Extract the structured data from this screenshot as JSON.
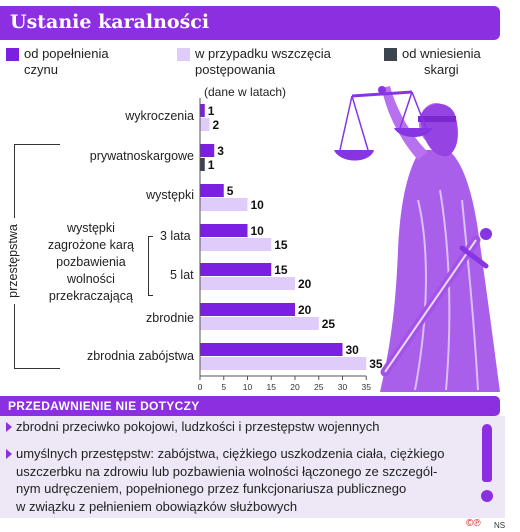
{
  "header": {
    "title": "Ustanie karalności"
  },
  "legend": [
    {
      "label_lines": [
        "od popełnienia",
        "czynu"
      ],
      "color": "#7b1fe0"
    },
    {
      "label_lines": [
        "w przypadku wszczęcia",
        "postępowania"
      ],
      "color": "#e0ccfa"
    },
    {
      "label_lines": [
        "od wniesienia",
        "skargi"
      ],
      "color": "#3c4450"
    }
  ],
  "unit_note": "(dane w latach)",
  "side_label": "przestępstwa",
  "chart_data": {
    "type": "bar",
    "orientation": "horizontal",
    "categories": [
      "wykroczenia",
      "prywatnoskargowe",
      "występki",
      "występki zagrożone karą pozbawienia wolności przekraczającą 3 lata",
      "występki zagrożone karą pozbawienia wolności przekraczającą 5 lat",
      "zbrodnie",
      "zbrodnia zabójstwa"
    ],
    "category_display": [
      {
        "lines": [
          "wykroczenia"
        ]
      },
      {
        "lines": [
          "prywatnoskargowe"
        ]
      },
      {
        "lines": [
          "występki"
        ]
      },
      {
        "lines": [
          "występki",
          "zagrożone karą",
          "pozbawienia"
        ],
        "sub": "3 lata"
      },
      {
        "lines": [
          "wolności",
          "przekraczającą"
        ],
        "sub": "5 lat"
      },
      {
        "lines": [
          "zbrodnie"
        ]
      },
      {
        "lines": [
          "zbrodnia zabójstwa"
        ]
      }
    ],
    "series": [
      {
        "name": "od popełnienia czynu",
        "values": [
          1,
          3,
          5,
          10,
          15,
          20,
          30
        ]
      },
      {
        "name": "w przypadku wszczęcia postępowania",
        "values": [
          2,
          null,
          10,
          15,
          20,
          25,
          35
        ]
      },
      {
        "name": "od wniesienia skargi",
        "values": [
          null,
          1,
          null,
          null,
          null,
          null,
          null
        ]
      }
    ],
    "xlim": [
      0,
      35
    ],
    "xticks": [
      0,
      5,
      10,
      15,
      20,
      25,
      30,
      35
    ],
    "grid": false
  },
  "panel": {
    "title": "PRZEDAWNIENIE NIE DOTYCZY",
    "items": [
      {
        "lines": [
          "zbrodni przeciwko pokojowi, ludzkości i przestępstw wojennych"
        ]
      },
      {
        "lines": [
          "umyślnych przestępstw: zabójstwa, ciężkiego uszkodzenia ciała, ciężkiego",
          "uszczerbku na zdrowiu lub pozbawienia wolności łączonego ze szczegól-",
          "nym udręczeniem, popełnionego przez funkcjonariusza publicznego",
          "w związku z pełnieniem obowiązków służbowych"
        ]
      }
    ]
  },
  "credit": {
    "symbol": "©℗",
    "agency": "NS"
  }
}
